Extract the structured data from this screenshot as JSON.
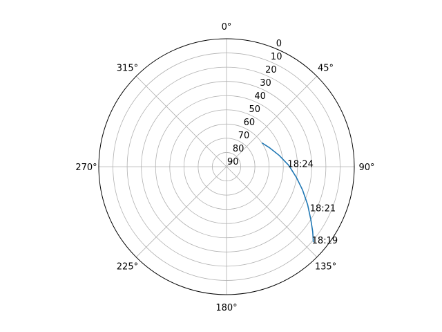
{
  "chart_data": {
    "type": "line",
    "projection": "polar",
    "theta_direction": "clockwise",
    "theta_zero": "top",
    "radial_axis": {
      "inverted": true,
      "range": [
        90,
        0
      ],
      "ticks": [
        0,
        10,
        20,
        30,
        40,
        50,
        60,
        70,
        80,
        90
      ],
      "tick_labels": [
        "0",
        "10",
        "20",
        "30",
        "40",
        "50",
        "60",
        "70",
        "80",
        "90"
      ],
      "label_angle_deg": 22.5
    },
    "angular_axis": {
      "ticks_deg": [
        0,
        45,
        90,
        135,
        180,
        225,
        270,
        315
      ],
      "tick_labels": [
        "0°",
        "45°",
        "90°",
        "135°",
        "180°",
        "225°",
        "270°",
        "315°"
      ]
    },
    "grid": true,
    "legend": "none",
    "colors": {
      "line": "#1f77b4",
      "grid": "#b0b0b0",
      "frame": "#000000"
    },
    "series": [
      {
        "points": [
          {
            "az": 131,
            "alt": 9
          },
          {
            "az": 127,
            "alt": 14
          },
          {
            "az": 122,
            "alt": 20
          },
          {
            "az": 115,
            "alt": 27
          },
          {
            "az": 107,
            "alt": 34
          },
          {
            "az": 99,
            "alt": 40
          },
          {
            "az": 89,
            "alt": 46
          },
          {
            "az": 78,
            "alt": 52
          },
          {
            "az": 66,
            "alt": 57
          },
          {
            "az": 56,
            "alt": 60
          }
        ]
      }
    ],
    "annotations": [
      {
        "text": "18:19",
        "az": 131,
        "alt": 9
      },
      {
        "text": "18:21",
        "az": 117,
        "alt": 23
      },
      {
        "text": "18:24",
        "az": 89,
        "alt": 46
      }
    ]
  }
}
